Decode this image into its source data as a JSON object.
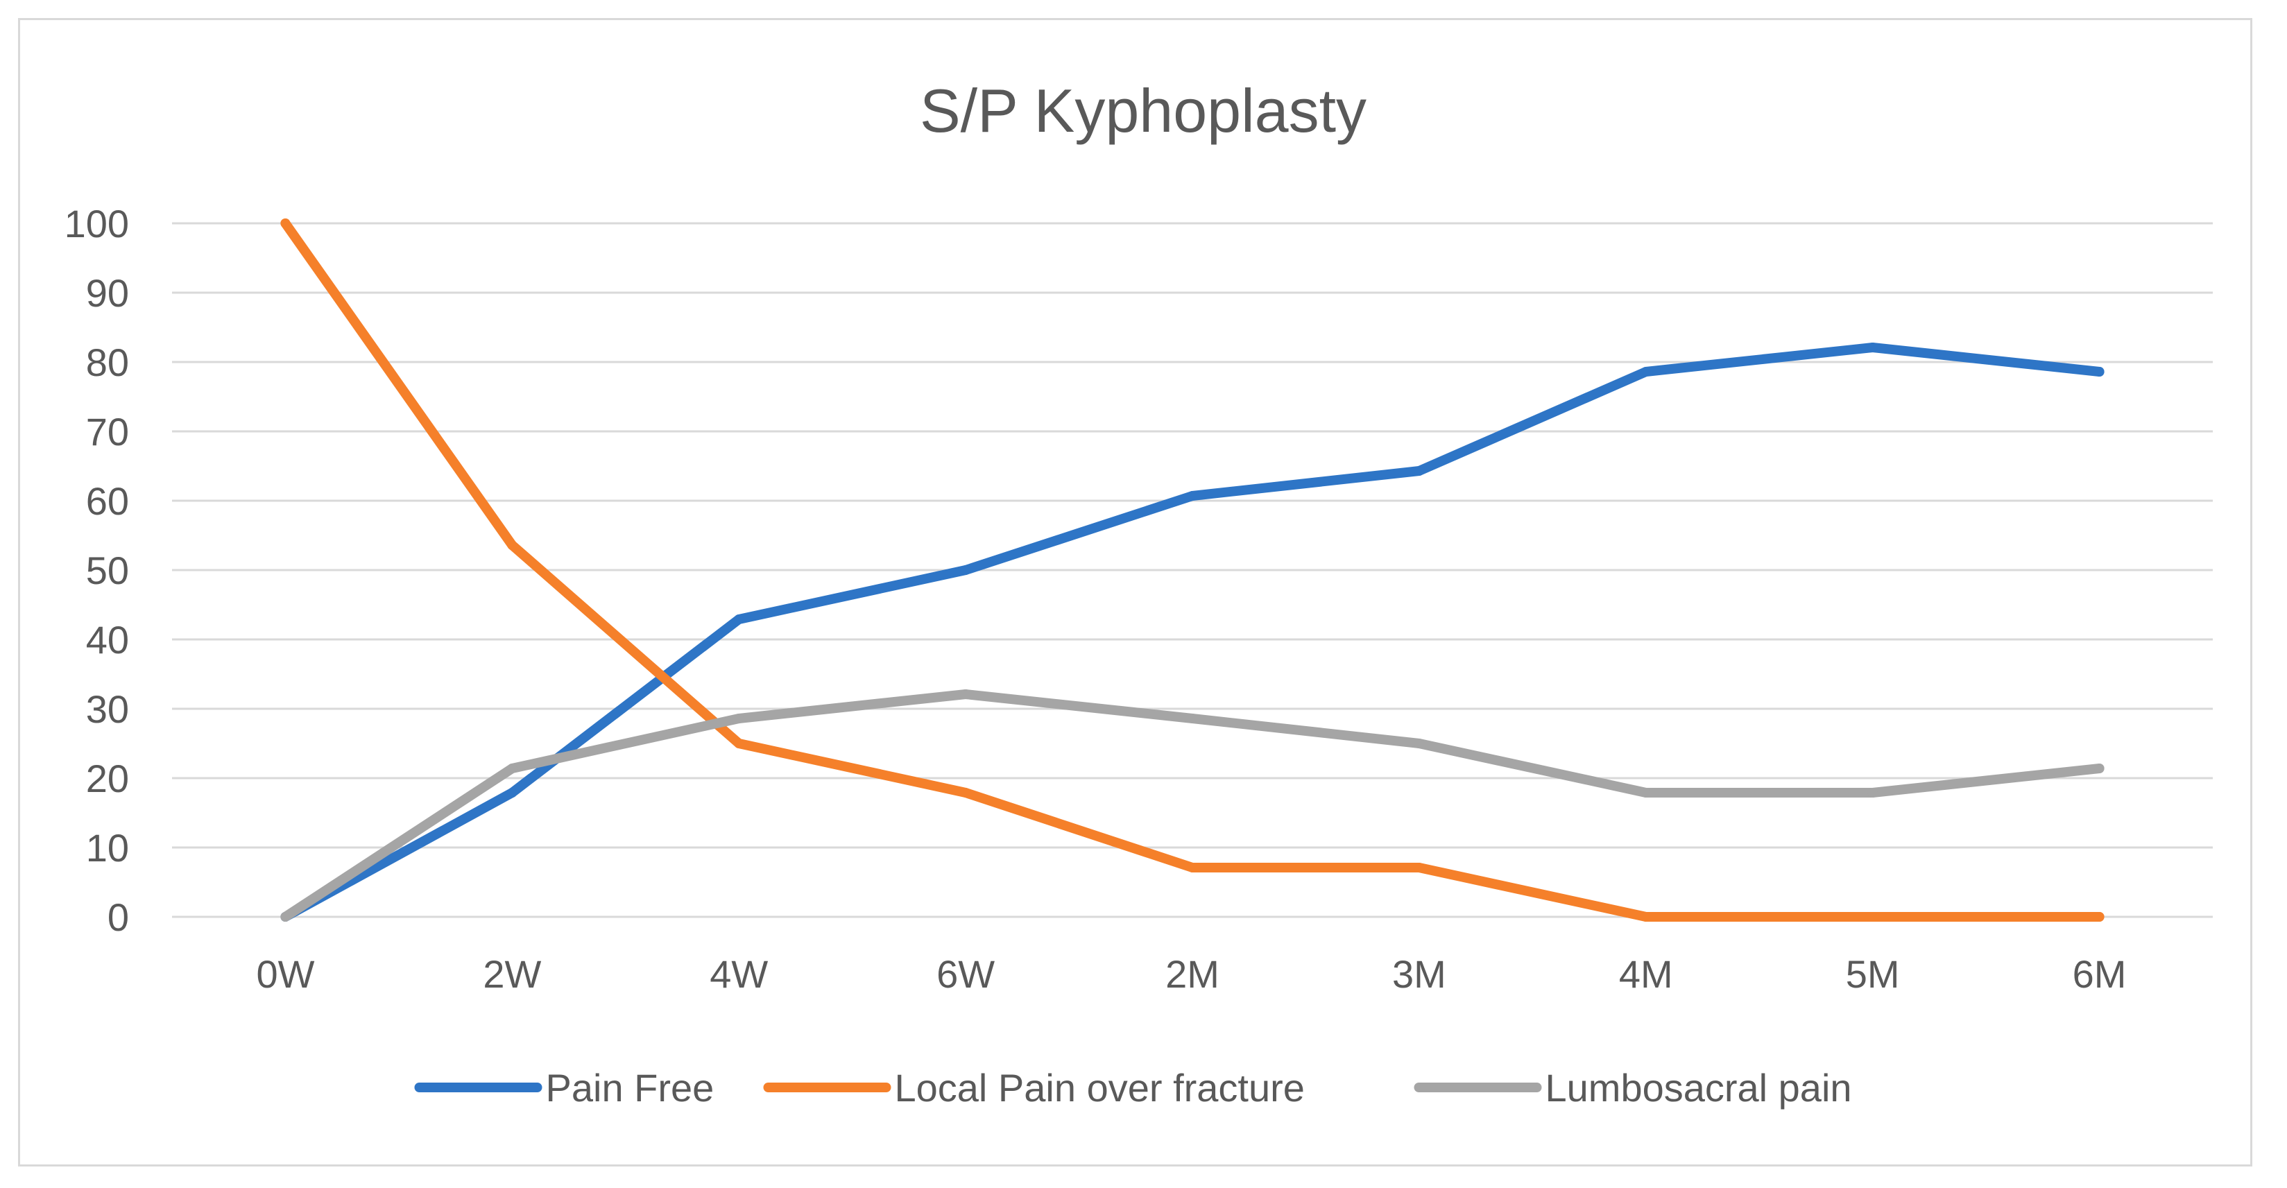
{
  "chart_data": {
    "type": "line",
    "title": "S/P Kyphoplasty",
    "xlabel": "",
    "ylabel": "",
    "categories": [
      "0W",
      "2W",
      "4W",
      "6W",
      "2M",
      "3M",
      "4M",
      "5M",
      "6M"
    ],
    "ylim": [
      0,
      100
    ],
    "yticks": [
      0,
      10,
      20,
      30,
      40,
      50,
      60,
      70,
      80,
      90,
      100
    ],
    "grid": true,
    "legend_position": "bottom",
    "series": [
      {
        "name": "Pain Free",
        "color": "#2e75c6",
        "values": [
          0,
          17.9,
          42.9,
          50,
          60.7,
          64.3,
          78.6,
          82.1,
          78.6
        ]
      },
      {
        "name": "Local Pain over fracture",
        "color": "#f5802a",
        "values": [
          100,
          53.6,
          25,
          17.9,
          7.1,
          7.1,
          0,
          0,
          0
        ]
      },
      {
        "name": "Lumbosacral pain",
        "color": "#a5a5a5",
        "values": [
          0,
          21.4,
          28.6,
          32.1,
          28.6,
          25,
          17.9,
          17.9,
          21.4
        ]
      }
    ]
  }
}
